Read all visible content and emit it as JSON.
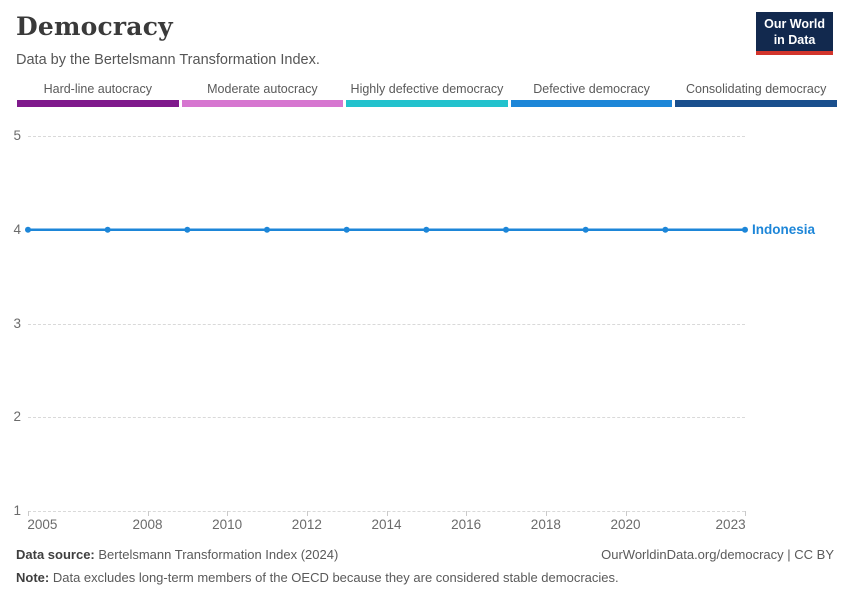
{
  "header": {
    "title": "Democracy",
    "subtitle": "Data by the Bertelsmann Transformation Index."
  },
  "logo": {
    "line1": "Our World",
    "line2": "in Data",
    "bg_color": "#12294e",
    "accent_color": "#d2352c"
  },
  "legend": {
    "bins": [
      {
        "label": "Hard-line autocracy",
        "color": "#7f1a8c"
      },
      {
        "label": "Moderate autocracy",
        "color": "#d676d0"
      },
      {
        "label": "Highly defective democracy",
        "color": "#22c2cd"
      },
      {
        "label": "Defective democracy",
        "color": "#1d86d8"
      },
      {
        "label": "Consolidating democracy",
        "color": "#1a4f8d"
      }
    ]
  },
  "chart_data": {
    "type": "line",
    "title": "Democracy",
    "xlabel": "",
    "ylabel": "",
    "xlim": [
      2005,
      2023
    ],
    "ylim": [
      1,
      5
    ],
    "xticks": [
      2005,
      2008,
      2010,
      2012,
      2014,
      2016,
      2018,
      2020,
      2023
    ],
    "yticks": [
      1,
      2,
      3,
      4,
      5
    ],
    "grid": "horizontal-dashed",
    "legend_position": "right-of-line",
    "series": [
      {
        "name": "Indonesia",
        "color": "#1d86d8",
        "x": [
          2005,
          2007,
          2009,
          2011,
          2013,
          2015,
          2017,
          2019,
          2021,
          2023
        ],
        "values": [
          4,
          4,
          4,
          4,
          4,
          4,
          4,
          4,
          4,
          4
        ]
      }
    ]
  },
  "footer": {
    "source_label": "Data source:",
    "source_text": "Bertelsmann Transformation Index (2024)",
    "credit": "OurWorldinData.org/democracy | CC BY",
    "note_label": "Note:",
    "note_text": "Data excludes long-term members of the OECD because they are considered stable democracies."
  }
}
